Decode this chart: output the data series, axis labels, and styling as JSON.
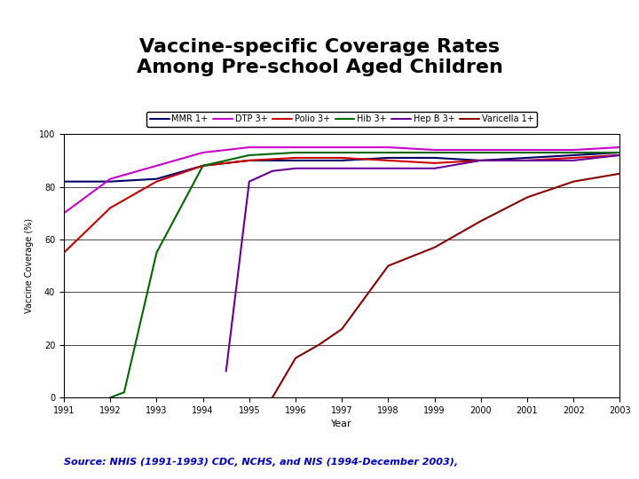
{
  "title": "Vaccine-specific Coverage Rates\nAmong Pre-school Aged Children",
  "title_bg": "#ffffcc",
  "plot_bg": "#ffffff",
  "xlabel": "Year",
  "ylabel": "Vaccine Coverage (%)",
  "ylim": [
    0,
    100
  ],
  "xlim": [
    1991,
    2003
  ],
  "xticks": [
    1991,
    1992,
    1993,
    1994,
    1995,
    1996,
    1997,
    1998,
    1999,
    2000,
    2001,
    2002,
    2003
  ],
  "yticks": [
    0,
    20,
    40,
    60,
    80,
    100
  ],
  "source_text": "Source: NHIS (1991-1993) CDC, NCHS, and NIS (1994-December 2003),",
  "source_color": "#0000cc",
  "outer_bg": "#ffffff",
  "series": [
    {
      "label": "MMR 1+",
      "color": "#000066",
      "linewidth": 1.5,
      "years": [
        1991,
        1992,
        1993,
        1994,
        1995,
        1996,
        1997,
        1998,
        1999,
        2000,
        2001,
        2002,
        2003
      ],
      "values": [
        82,
        82,
        83,
        88,
        90,
        90,
        90,
        91,
        91,
        90,
        91,
        92,
        93
      ]
    },
    {
      "label": "DTP 3+",
      "color": "#cc00cc",
      "linewidth": 1.5,
      "years": [
        1991,
        1992,
        1993,
        1994,
        1995,
        1996,
        1997,
        1998,
        1999,
        2000,
        2001,
        2002,
        2003
      ],
      "values": [
        70,
        83,
        88,
        93,
        95,
        95,
        95,
        95,
        94,
        94,
        94,
        94,
        95
      ]
    },
    {
      "label": "Polio 3+",
      "color": "#cc0000",
      "linewidth": 1.5,
      "years": [
        1991,
        1992,
        1993,
        1994,
        1995,
        1996,
        1997,
        1998,
        1999,
        2000,
        2001,
        2002,
        2003
      ],
      "values": [
        55,
        72,
        82,
        88,
        90,
        91,
        91,
        90,
        89,
        90,
        90,
        91,
        92
      ]
    },
    {
      "label": "Hib 3+",
      "color": "#006600",
      "linewidth": 1.5,
      "years": [
        1992,
        1992.3,
        1993,
        1994,
        1995,
        1996,
        1997,
        1998,
        1999,
        2000,
        2001,
        2002,
        2003
      ],
      "values": [
        0,
        2,
        55,
        88,
        92,
        93,
        93,
        93,
        93,
        93,
        93,
        93,
        93
      ]
    },
    {
      "label": "Hep B 3+",
      "color": "#660099",
      "linewidth": 1.5,
      "years": [
        1994.5,
        1995,
        1995.5,
        1996,
        1997,
        1998,
        1999,
        2000,
        2001,
        2002,
        2003
      ],
      "values": [
        10,
        82,
        86,
        87,
        87,
        87,
        87,
        90,
        90,
        90,
        92
      ]
    },
    {
      "label": "Varicella 1+",
      "color": "#8B0000",
      "linewidth": 1.5,
      "years": [
        1995.5,
        1996,
        1996.5,
        1997,
        1998,
        1999,
        2000,
        2001,
        2002,
        2003
      ],
      "values": [
        0,
        15,
        20,
        26,
        50,
        57,
        67,
        76,
        82,
        85
      ]
    }
  ],
  "legend_fontsize": 7,
  "tick_fontsize": 7,
  "ylabel_fontsize": 7,
  "xlabel_fontsize": 8,
  "title_fontsize": 16
}
